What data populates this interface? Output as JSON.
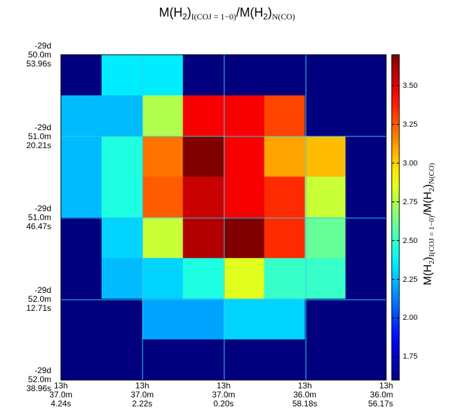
{
  "title": {
    "part1": "M(H",
    "part2": "2",
    "part3": ")",
    "sub1": "I(COJ = 1−0)",
    "part4": "/M(H",
    "part5": "2",
    "part6": ")",
    "sub2": "N(CO)"
  },
  "colorbar_label": {
    "part1": "M(H",
    "part2": "2",
    "part3": ")",
    "sub1": "I(COJ = 1−0)",
    "part4": "/M(H",
    "part5": "2",
    "part6": ")",
    "sub2": "N(CO)"
  },
  "y_ticks": [
    [
      "-29d",
      "50.0m",
      "53.96s"
    ],
    [
      "-29d",
      "51.0m",
      "20.21s"
    ],
    [
      "-29d",
      "51.0m",
      "46.47s"
    ],
    [
      "-29d",
      "52.0m",
      "12.71s"
    ],
    [
      "-29d",
      "52.0m",
      "38.96s"
    ]
  ],
  "x_ticks": [
    [
      "13h",
      "37.0m",
      "4.24s"
    ],
    [
      "13h",
      "37.0m",
      "2.22s"
    ],
    [
      "13h",
      "37.0m",
      "0.20s"
    ],
    [
      "13h",
      "36.0m",
      "58.18s"
    ],
    [
      "13h",
      "36.0m",
      "56.17s"
    ]
  ],
  "colorbar_ticks": [
    "1.75",
    "2.00",
    "2.25",
    "2.50",
    "2.75",
    "3.00",
    "3.25",
    "3.50"
  ],
  "chart_data": {
    "type": "heatmap",
    "colormap": "jet",
    "vmin": 1.6,
    "vmax": 3.7,
    "nan_color": "#00007f",
    "grid": true,
    "grid_color": "#38c8e8",
    "rows": 8,
    "cols": 8,
    "values": [
      [
        null,
        2.35,
        2.35,
        null,
        null,
        null,
        null,
        null
      ],
      [
        2.25,
        2.25,
        2.75,
        3.45,
        3.45,
        3.3,
        null,
        null
      ],
      [
        2.25,
        2.45,
        3.2,
        3.7,
        3.45,
        3.1,
        3.05,
        null
      ],
      [
        2.25,
        2.45,
        3.25,
        3.55,
        3.45,
        3.35,
        2.8,
        null
      ],
      [
        null,
        2.3,
        2.8,
        3.6,
        3.7,
        3.35,
        2.6,
        null
      ],
      [
        null,
        2.25,
        2.3,
        2.45,
        2.85,
        2.5,
        2.5,
        null
      ],
      [
        null,
        null,
        2.2,
        2.2,
        2.3,
        2.3,
        null,
        null
      ],
      [
        null,
        null,
        null,
        null,
        null,
        null,
        null,
        null
      ]
    ]
  }
}
